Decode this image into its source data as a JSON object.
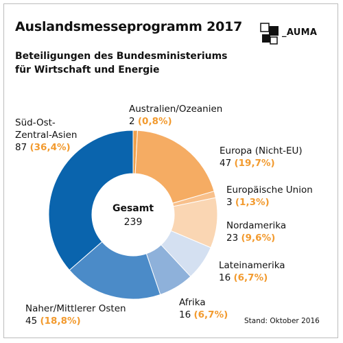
{
  "header": {
    "title": "Auslandsmesseprogramm 2017",
    "subtitle_line1": "Beteiligungen des Bundesministeriums",
    "subtitle_line2": "für Wirtschaft und Energie",
    "logo_text": "AUMA"
  },
  "center": {
    "label": "Gesamt",
    "value": "239"
  },
  "footnote": "Stand: Oktober 2016",
  "colors": {
    "percent_text": "#f29a2e",
    "border": "#bcbcbc"
  },
  "chart_data": {
    "type": "pie",
    "donut": true,
    "total": 239,
    "slices": [
      {
        "label": "Australien/Ozeanien",
        "value": 2,
        "percent": "0,8%",
        "color": "#f0a04b"
      },
      {
        "label": "Europa (Nicht-EU)",
        "value": 47,
        "percent": "19,7%",
        "color": "#f5ac63"
      },
      {
        "label": "Europäische Union",
        "value": 3,
        "percent": "1,3%",
        "color": "#f8c08b"
      },
      {
        "label": "Nordamerika",
        "value": 23,
        "percent": "9,6%",
        "color": "#fad6b3"
      },
      {
        "label": "Lateinamerika",
        "value": 16,
        "percent": "6,7%",
        "color": "#d4e0f1"
      },
      {
        "label": "Afrika",
        "value": 16,
        "percent": "6,7%",
        "color": "#8eb1da"
      },
      {
        "label": "Naher/Mittlerer Osten",
        "value": 45,
        "percent": "18,8%",
        "color": "#4b8bc8"
      },
      {
        "label": "Süd-Ost-Zentral-Asien",
        "value": 87,
        "percent": "36,4%",
        "color": "#0a64ad"
      }
    ],
    "labels": [
      {
        "lines": [
          "Australien/Ozeanien"
        ],
        "value": "2",
        "percent": "(0,8%)"
      },
      {
        "lines": [
          "Europa (Nicht-EU)"
        ],
        "value": "47",
        "percent": "(19,7%)"
      },
      {
        "lines": [
          "Europäische Union"
        ],
        "value": "3",
        "percent": "(1,3%)"
      },
      {
        "lines": [
          "Nordamerika"
        ],
        "value": "23",
        "percent": "(9,6%)"
      },
      {
        "lines": [
          "Lateinamerika"
        ],
        "value": "16",
        "percent": "(6,7%)"
      },
      {
        "lines": [
          "Afrika"
        ],
        "value": "16",
        "percent": "(6,7%)"
      },
      {
        "lines": [
          "Naher/Mittlerer Osten"
        ],
        "value": "45",
        "percent": "(18,8%)"
      },
      {
        "lines": [
          "Süd-Ost-",
          "Zentral-Asien"
        ],
        "value": "87",
        "percent": "(36,4%)"
      }
    ]
  }
}
